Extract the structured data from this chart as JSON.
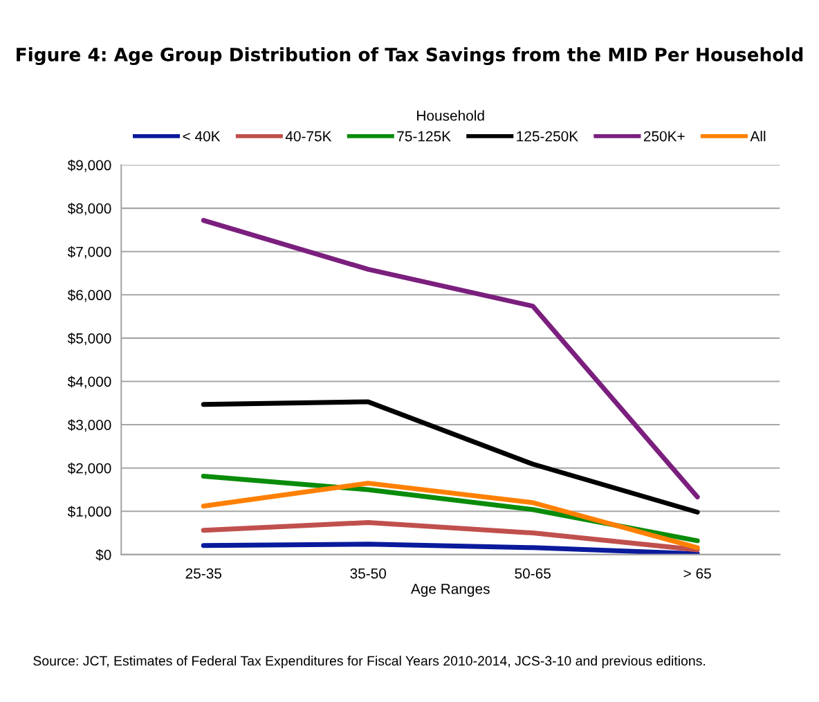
{
  "chart_data": {
    "type": "line",
    "title": "Figure 4: Age Group Distribution of Tax Savings from the MID Per Household",
    "legend_title": "Household",
    "xlabel": "Age Ranges",
    "categories": [
      "25-35",
      "35-50",
      "50-65",
      "> 65"
    ],
    "series": [
      {
        "name": "< 40K",
        "color": "#0a1a9c",
        "values": [
          210,
          240,
          160,
          20
        ]
      },
      {
        "name": "40-75K",
        "color": "#c0504d",
        "values": [
          560,
          740,
          500,
          110
        ]
      },
      {
        "name": "75-125K",
        "color": "#0a8c0a",
        "values": [
          1810,
          1500,
          1040,
          320
        ]
      },
      {
        "name": "125-250K",
        "color": "#000000",
        "values": [
          3470,
          3530,
          2090,
          980
        ]
      },
      {
        "name": "250K+",
        "color": "#7b1f7e",
        "values": [
          7720,
          6590,
          5740,
          1330
        ]
      },
      {
        "name": "All",
        "color": "#ff8000",
        "values": [
          1120,
          1650,
          1200,
          160
        ]
      }
    ],
    "ylim": [
      0,
      9000
    ],
    "yticks": [
      {
        "value": 0,
        "label": "$0"
      },
      {
        "value": 1000,
        "label": "$1,000"
      },
      {
        "value": 2000,
        "label": "$2,000"
      },
      {
        "value": 3000,
        "label": "$3,000"
      },
      {
        "value": 4000,
        "label": "$4,000"
      },
      {
        "value": 5000,
        "label": "$5,000"
      },
      {
        "value": 6000,
        "label": "$6,000"
      },
      {
        "value": 7000,
        "label": "$7,000"
      },
      {
        "value": 8000,
        "label": "$8,000"
      },
      {
        "value": 9000,
        "label": "$9,000"
      }
    ],
    "grid": "y",
    "legend": "top",
    "marker": "none",
    "line_style": "solid",
    "annotations": [
      "Source: JCT, Estimates of Federal Tax Expenditures for Fiscal Years 2010-2014, JCS-3-10 and previous editions."
    ]
  }
}
